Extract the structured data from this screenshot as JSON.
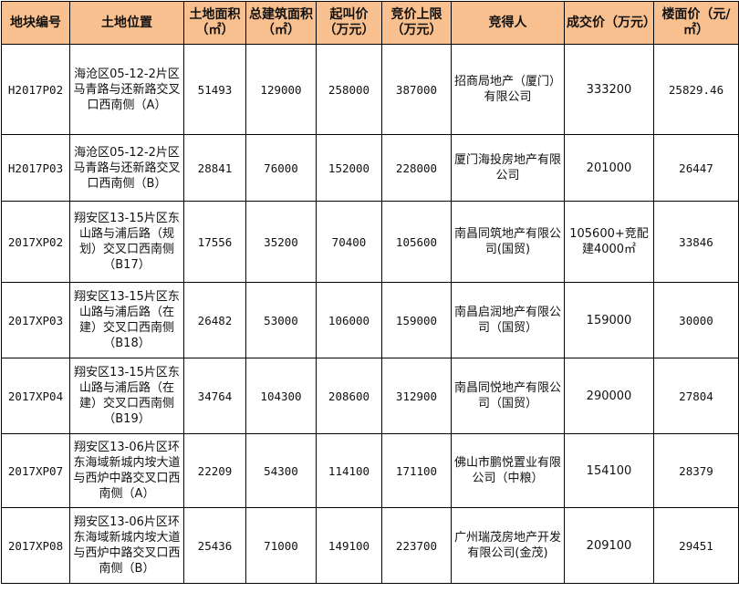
{
  "colors": {
    "header_bg": "#F9C08F",
    "border": "#000000"
  },
  "headers": [
    "地块编号",
    "土地位置",
    "土地面积（㎡）",
    "总建筑面积（㎡）",
    "起叫价（万元）",
    "竞价上限（万元）",
    "竞得人",
    "成交价（万元）",
    "楼面价（元/㎡）"
  ],
  "rows": [
    {
      "id": "H2017P02",
      "location": "海沧区05-12-2片区马青路与还新路交叉口西南侧（A）",
      "land_area": "51493",
      "total_area": "129000",
      "start_price": "258000",
      "cap_price": "387000",
      "winner": "招商局地产（厦门）有限公司",
      "deal_price": "333200",
      "floor_price": "25829.46"
    },
    {
      "id": "H2017P03",
      "location": "海沧区05-12-2片区马青路与还新路交叉口西南侧（B）",
      "land_area": "28841",
      "total_area": "76000",
      "start_price": "152000",
      "cap_price": "228000",
      "winner": "厦门海投房地产有限公司",
      "deal_price": "201000",
      "floor_price": "26447"
    },
    {
      "id": "2017XP02",
      "location": "翔安区13-15片区东山路与浦后路（规划）交叉口西南侧（B17）",
      "land_area": "17556",
      "total_area": "35200",
      "start_price": "70400",
      "cap_price": "105600",
      "winner": "南昌同筑地产有限公司(国贸)",
      "deal_price": "105600+竞配建4000㎡",
      "floor_price": "33846"
    },
    {
      "id": "2017XP03",
      "location": "翔安区13-15片区东山路与浦后路（在建）交叉口西南侧（B18）",
      "land_area": "26482",
      "total_area": "53000",
      "start_price": "106000",
      "cap_price": "159000",
      "winner": "南昌启润地产有限公司（国贸）",
      "deal_price": "159000",
      "floor_price": "30000"
    },
    {
      "id": "2017XP04",
      "location": "翔安区13-15片区东山路与浦后路（在建）交叉口西南侧（B19）",
      "land_area": "34764",
      "total_area": "104300",
      "start_price": "208600",
      "cap_price": "312900",
      "winner": "南昌同悦地产有限公司（国贸）",
      "deal_price": "290000",
      "floor_price": "27804"
    },
    {
      "id": "2017XP07",
      "location": "翔安区13-06片区环东海域新城内垵大道与西炉中路交叉口西南侧（A）",
      "land_area": "22209",
      "total_area": "54300",
      "start_price": "114100",
      "cap_price": "171100",
      "winner": "佛山市鹏悦置业有限公司（中粮）",
      "deal_price": "154100",
      "floor_price": "28379"
    },
    {
      "id": "2017XP08",
      "location": "翔安区13-06片区环东海域新城内垵大道与西炉中路交叉口西南侧（B）",
      "land_area": "25436",
      "total_area": "71000",
      "start_price": "149100",
      "cap_price": "223700",
      "winner": "广州瑞茂房地产开发有限公司(金茂)",
      "deal_price": "209100",
      "floor_price": "29451"
    }
  ]
}
